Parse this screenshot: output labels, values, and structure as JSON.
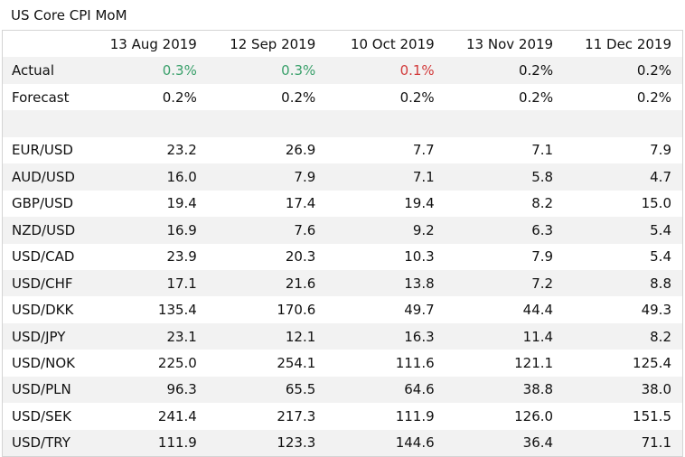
{
  "title": "US Core CPI MoM",
  "dates": [
    "13 Aug 2019",
    "12 Sep 2019",
    "10 Oct 2019",
    "13 Nov 2019",
    "11 Dec 2019"
  ],
  "actual": {
    "label": "Actual",
    "values": [
      "0.3%",
      "0.3%",
      "0.1%",
      "0.2%",
      "0.2%"
    ],
    "colors": [
      "#3aa06b",
      "#3aa06b",
      "#d23a3a",
      "#111111",
      "#111111"
    ]
  },
  "forecast": {
    "label": "Forecast",
    "values": [
      "0.2%",
      "0.2%",
      "0.2%",
      "0.2%",
      "0.2%"
    ]
  },
  "pairs": [
    {
      "name": "EUR/USD",
      "values": [
        "23.2",
        "26.9",
        "7.7",
        "7.1",
        "7.9"
      ]
    },
    {
      "name": "AUD/USD",
      "values": [
        "16.0",
        "7.9",
        "7.1",
        "5.8",
        "4.7"
      ]
    },
    {
      "name": "GBP/USD",
      "values": [
        "19.4",
        "17.4",
        "19.4",
        "8.2",
        "15.0"
      ]
    },
    {
      "name": "NZD/USD",
      "values": [
        "16.9",
        "7.6",
        "9.2",
        "6.3",
        "5.4"
      ]
    },
    {
      "name": "USD/CAD",
      "values": [
        "23.9",
        "20.3",
        "10.3",
        "7.9",
        "5.4"
      ]
    },
    {
      "name": "USD/CHF",
      "values": [
        "17.1",
        "21.6",
        "13.8",
        "7.2",
        "8.8"
      ]
    },
    {
      "name": "USD/DKK",
      "values": [
        "135.4",
        "170.6",
        "49.7",
        "44.4",
        "49.3"
      ]
    },
    {
      "name": "USD/JPY",
      "values": [
        "23.1",
        "12.1",
        "16.3",
        "11.4",
        "8.2"
      ]
    },
    {
      "name": "USD/NOK",
      "values": [
        "225.0",
        "254.1",
        "111.6",
        "121.1",
        "125.4"
      ]
    },
    {
      "name": "USD/PLN",
      "values": [
        "96.3",
        "65.5",
        "64.6",
        "38.8",
        "38.0"
      ]
    },
    {
      "name": "USD/SEK",
      "values": [
        "241.4",
        "217.3",
        "111.9",
        "126.0",
        "151.5"
      ]
    },
    {
      "name": "USD/TRY",
      "values": [
        "111.9",
        "123.3",
        "144.6",
        "36.4",
        "71.1"
      ]
    }
  ]
}
